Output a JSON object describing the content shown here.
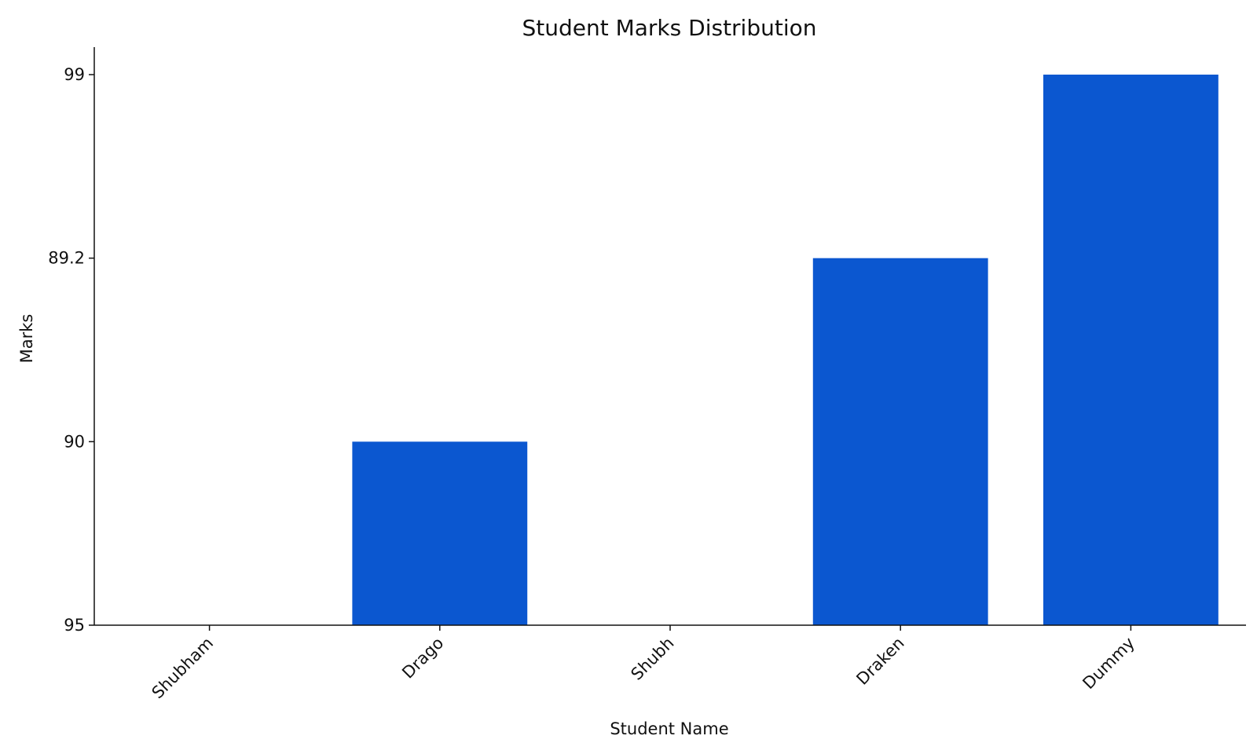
{
  "chart_data": {
    "type": "bar",
    "title": "Student Marks Distribution",
    "xlabel": "Student Name",
    "ylabel": "Marks",
    "categories": [
      "Shubham",
      "Drago",
      "Shubh",
      "Draken",
      "Dummy"
    ],
    "y_scale": "categorical",
    "y_ticks": [
      "95",
      "90",
      "89.2",
      "99"
    ],
    "values": [
      "95",
      "90",
      "95",
      "89.2",
      "99"
    ],
    "grid": false,
    "legend": "none",
    "bar_color": "#0b57d0"
  }
}
